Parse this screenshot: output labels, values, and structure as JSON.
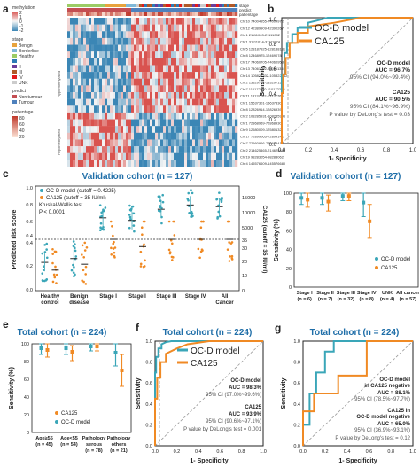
{
  "panel_labels": [
    "a",
    "b",
    "c",
    "d",
    "e",
    "f",
    "g"
  ],
  "colors": {
    "ocd": "#3aa6b8",
    "ca125": "#f08a24",
    "heat_high": "#d9534f",
    "heat_low": "#4a90b8",
    "title_blue": "#1f6ea8"
  },
  "heatmap": {
    "legend": {
      "methylation_title": "methylation",
      "methylation_ticks": [
        "2",
        "1",
        "0",
        "-1",
        "-2"
      ],
      "stage_title": "stage",
      "stage_items": [
        "Benign",
        "Borderline",
        "Healthy",
        "I",
        "II",
        "III",
        "IV",
        "UNK"
      ],
      "predict_title": "predict",
      "predict_items": [
        "Non tumour",
        "Tumour"
      ],
      "patientage_title": "patientage",
      "patientage_ticks": [
        "80",
        "60",
        "40",
        "20"
      ]
    },
    "annotation_labels": [
      "stage",
      "predict",
      "patientage"
    ],
    "group_labels": [
      "Hypermethylated",
      "Hypomethylated"
    ],
    "markers": [
      "Chr10 74004955-74004972",
      "Chr12 42389909-42390267",
      "Chr1 21111063-21111082",
      "Chr1 31111014-31111074",
      "Chr5 128187925-128188181",
      "Chr8 12468975-12469078",
      "Chr17 74060705-74060953",
      "Chr13 74061002-74061135",
      "Chr14 105822332-105822442",
      "Chr2 13329702-13329713",
      "Chr7 110172150-110172215",
      "Chr11 13137702-13137760",
      "Chr1 15637301-15637330",
      "Chr8 12826914-12826939",
      "Chr2 108285931-108285946",
      "Chr1 72868959-72868930",
      "Chr9 12580009-12580132",
      "Chr17 72899063-72899141",
      "Chr7 72560966-72560941",
      "Chr2 214625465-214625481",
      "Chr19 98283054-98283062",
      "Chr4 145576609-145576680"
    ]
  },
  "panel_titles": {
    "c": "Validation cohort (n = 127)",
    "d": "Validation cohort (n = 127)",
    "e": "Total cohort (n = 224)",
    "f": "Total cohort (n = 224)",
    "g": "Total cohort (n = 224)"
  },
  "roc_b": {
    "xlabel": "1- Specificity",
    "ylabel": "Sensitivity",
    "ticks": [
      "0.0",
      "0.2",
      "0.4",
      "0.6",
      "0.8",
      "1.0"
    ],
    "legend": [
      "OC-D model",
      "CA125"
    ],
    "annotations": [
      "OC-D model",
      "AUC = 96.7%",
      "95% CI (94.0%~99.4%)",
      "CA125",
      "AUC = 90.5%",
      "95% CI (84.1%~96.9%)",
      "P value by DeLong's test = 0.03"
    ]
  },
  "roc_f": {
    "xlabel": "1- Specificity",
    "ylabel": "Sensitivity",
    "ticks": [
      "0.0",
      "0.2",
      "0.4",
      "0.6",
      "0.8",
      "1.0"
    ],
    "legend": [
      "OC-D model",
      "CA125"
    ],
    "annotations": [
      "OC-D model",
      "AUC = 98.3%",
      "95% CI (97.0%~99.6%)",
      "CA125",
      "AUC = 93.9%",
      "95% CI (90.6%~97.1%)",
      "P value by DeLong's test = 0.001"
    ]
  },
  "roc_g": {
    "xlabel": "1- Specificity",
    "ylabel": "Sensitivity",
    "ticks": [
      "0.0",
      "0.2",
      "0.4",
      "0.6",
      "0.8",
      "1.0"
    ],
    "annotations": [
      "OC-D model",
      "in CA125 negative",
      "AUC = 88.1%",
      "95% CI (78.5%~97.7%)",
      "CA125 in",
      "OC-D model negative",
      "AUC = 65.0%",
      "95% CI (36.9%~93.1%)",
      "P value by DeLong's test = 0.12"
    ]
  },
  "panel_c": {
    "ylabel_left": "Predicted risk score",
    "ylabel_right": "CA125 (cutoff = 35 IU/ml)",
    "legend": [
      "OC-D model (cutoff = 0.4225)",
      "CA125 (cutoff = 35 IU/ml)",
      "Kruskal-Wallis test",
      "P < 0.0001"
    ],
    "categories": [
      "Healthy\ncontrol",
      "Benign\ndisease",
      "Stage I",
      "StageII",
      "Stage III",
      "Stage IV",
      "All\nCancer"
    ],
    "left_ticks_top": [
      "1.0",
      "0.8",
      "0.6",
      "0.4"
    ],
    "left_ticks_bottom": [
      "0.4",
      "0.2",
      "0.0"
    ],
    "right_ticks_top": [
      "15000",
      "10000",
      "5000"
    ],
    "right_ticks_bottom": [
      "35",
      "30",
      "20",
      "10",
      "0"
    ]
  },
  "panel_d": {
    "ylabel": "Sensitivity (%)",
    "yticks": [
      "100",
      "80",
      "60",
      "40",
      "20",
      "0"
    ],
    "legend": [
      "OC-D model",
      "CA125"
    ],
    "categories": [
      "Stage I\n(n = 6)",
      "Stage II\n(n = 7)",
      "Stage III\n(n = 32)",
      "Stage IV\n(n = 8)",
      "UNK\n(n = 4)",
      "All cancer\n(n = 57)"
    ]
  },
  "panel_e": {
    "ylabel": "Sensitivity (%)",
    "yticks": [
      "100",
      "80",
      "60",
      "40",
      "20",
      "0"
    ],
    "legend": [
      "CA125",
      "OC-D model"
    ],
    "categories": [
      "Age≥55\n(n = 45)",
      "Age<55\n(n = 54)",
      "Pathology\nserous\n(n = 78)",
      "Pathology\nothers\n(n = 21)"
    ]
  },
  "chart_data": [
    {
      "panel": "b",
      "type": "line",
      "xlabel": "1- Specificity",
      "ylabel": "Sensitivity",
      "xlim": [
        0,
        1
      ],
      "ylim": [
        0,
        1
      ],
      "series": [
        {
          "name": "OC-D model",
          "x": [
            0,
            0,
            0.02,
            0.02,
            0.04,
            0.04,
            0.08,
            0.08,
            0.12,
            0.12,
            0.2,
            0.2,
            0.28,
            0.35,
            1.0
          ],
          "y": [
            0,
            0.55,
            0.55,
            0.72,
            0.72,
            0.8,
            0.8,
            0.87,
            0.87,
            0.92,
            0.92,
            0.96,
            0.98,
            1.0,
            1.0
          ]
        },
        {
          "name": "CA125",
          "x": [
            0,
            0,
            0.01,
            0.01,
            0.03,
            0.03,
            0.06,
            0.06,
            0.12,
            0.12,
            0.2,
            0.2,
            0.4,
            0.6,
            1.0
          ],
          "y": [
            0,
            0.4,
            0.4,
            0.55,
            0.55,
            0.68,
            0.68,
            0.8,
            0.8,
            0.88,
            0.88,
            0.93,
            0.96,
            1.0,
            1.0
          ]
        }
      ]
    },
    {
      "panel": "c",
      "type": "scatter",
      "categories": [
        "Healthy control",
        "Benign disease",
        "Stage I",
        "StageII",
        "Stage III",
        "Stage IV",
        "All Cancer"
      ],
      "series": [
        {
          "name": "OC-D model",
          "medians": [
            0.22,
            0.25,
            0.65,
            0.62,
            0.75,
            0.8,
            0.78
          ]
        },
        {
          "name": "CA125",
          "medians": [
            14,
            18,
            35,
            30,
            35,
            35,
            35
          ]
        }
      ]
    },
    {
      "panel": "d",
      "type": "bar",
      "ylabel": "Sensitivity (%)",
      "ylim": [
        0,
        100
      ],
      "categories": [
        "Stage I",
        "Stage II",
        "Stage III",
        "Stage IV",
        "UNK",
        "All cancer"
      ],
      "series": [
        {
          "name": "OC-D model",
          "values": [
            85,
            100,
            100,
            100,
            100,
            95
          ],
          "ci_low": [
            58,
            100,
            100,
            100,
            100,
            88
          ],
          "ci_high": [
            100,
            100,
            100,
            100,
            100,
            100
          ]
        },
        {
          "name": "CA125",
          "values": [
            50,
            86,
            94,
            100,
            100,
            90
          ],
          "ci_low": [
            10,
            45,
            82,
            100,
            100,
            80
          ],
          "ci_high": [
            90,
            100,
            100,
            100,
            100,
            96
          ]
        }
      ]
    },
    {
      "panel": "e",
      "type": "bar",
      "ylabel": "Sensitivity (%)",
      "ylim": [
        0,
        100
      ],
      "categories": [
        "Age≥55",
        "Age<55",
        "Pathology serous",
        "Pathology others"
      ],
      "series": [
        {
          "name": "OC-D model",
          "values": [
            95,
            95,
            97,
            90
          ],
          "ci_low": [
            88,
            88,
            92,
            75
          ],
          "ci_high": [
            100,
            100,
            100,
            100
          ]
        },
        {
          "name": "CA125",
          "values": [
            93,
            91,
            97,
            70
          ],
          "ci_low": [
            85,
            81,
            92,
            52
          ],
          "ci_high": [
            100,
            98,
            100,
            88
          ]
        }
      ]
    },
    {
      "panel": "f",
      "type": "line",
      "xlabel": "1- Specificity",
      "ylabel": "Sensitivity",
      "xlim": [
        0,
        1
      ],
      "ylim": [
        0,
        1
      ],
      "series": [
        {
          "name": "OC-D model",
          "x": [
            0,
            0,
            0.01,
            0.01,
            0.03,
            0.03,
            0.06,
            0.06,
            0.1,
            0.15,
            1.0
          ],
          "y": [
            0,
            0.7,
            0.7,
            0.85,
            0.85,
            0.93,
            0.93,
            0.97,
            0.99,
            1.0,
            1.0
          ]
        },
        {
          "name": "CA125",
          "x": [
            0,
            0,
            0.02,
            0.02,
            0.05,
            0.05,
            0.1,
            0.1,
            0.2,
            0.3,
            0.5,
            1.0
          ],
          "y": [
            0,
            0.45,
            0.45,
            0.65,
            0.65,
            0.8,
            0.8,
            0.88,
            0.93,
            0.97,
            1.0,
            1.0
          ]
        }
      ]
    },
    {
      "panel": "g",
      "type": "line",
      "xlabel": "1- Specificity",
      "ylabel": "Sensitivity",
      "xlim": [
        0,
        1
      ],
      "ylim": [
        0,
        1
      ],
      "series": [
        {
          "name": "OC-D model in CA125 negative",
          "x": [
            0,
            0,
            0.06,
            0.06,
            0.12,
            0.12,
            0.2,
            0.2,
            0.28,
            0.28,
            0.6,
            0.6,
            1.0
          ],
          "y": [
            0,
            0.2,
            0.2,
            0.5,
            0.5,
            0.7,
            0.7,
            0.9,
            0.9,
            1.0,
            1.0,
            1.0,
            1.0
          ]
        },
        {
          "name": "CA125 in OC-D model negative",
          "x": [
            0,
            0,
            0.1,
            0.1,
            0.32,
            0.32,
            0.58,
            0.58,
            1.0
          ],
          "y": [
            0,
            0.33,
            0.33,
            0.5,
            0.5,
            0.67,
            0.67,
            1.0,
            1.0
          ]
        }
      ]
    }
  ]
}
